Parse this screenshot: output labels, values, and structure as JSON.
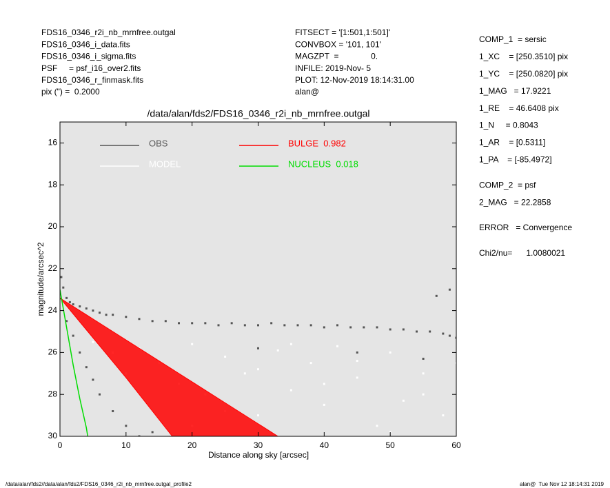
{
  "header": {
    "files": [
      "FDS16_0346_r2i_nb_mrnfree.outgal",
      "FDS16_0346_i_data.fits",
      "FDS16_0346_i_sigma.fits",
      "PSF     = psf_i16_over2.fits",
      "FDS16_0346_r_finmask.fits",
      "pix (\") =  0.2000"
    ],
    "settings": [
      "FITSECT = '[1:501,1:501]'",
      "CONVBOX = '101, 101'",
      "MAGZPT  =              0.",
      "INFILE: 2019-Nov- 5",
      "PLOT: 12-Nov-2019 18:14:31.00",
      "alan@"
    ]
  },
  "parameters": [
    [
      "COMP_1  = sersic",
      "1_XC    = [250.3510] pix",
      "1_YC    = [250.0820] pix",
      "1_MAG   = 17.9221",
      "1_RE    = 46.6408 pix",
      "1_N     = 0.8043",
      "1_AR    = [0.5311]",
      "1_PA    = [-85.4972]"
    ],
    [
      "COMP_2  = psf",
      "2_MAG   = 22.2858"
    ],
    [
      "ERROR   = Convergence"
    ],
    [
      "Chi2/nu=      1.0080021"
    ]
  ],
  "footer": {
    "left": "/data/alan/fds2//data/alan/fds2/FDS16_0346_r2i_nb_mrnfree.outgal_profile2",
    "right": "alan@  Tue Nov 12 18:14:31 2019"
  },
  "chart_data": {
    "type": "scatter",
    "title": "/data/alan/fds2/FDS16_0346_r2i_nb_mrnfree.outgal",
    "xlabel": "Distance along sky [arcsec]",
    "ylabel": "magnitude/arcsec^2",
    "xlim": [
      0,
      60
    ],
    "xticks": [
      0,
      10,
      20,
      30,
      40,
      50,
      60
    ],
    "ylim": [
      15,
      30
    ],
    "y_reversed": true,
    "yticks": [
      16,
      18,
      20,
      22,
      24,
      26,
      28,
      30
    ],
    "background": "#e5e5e5",
    "series": [
      {
        "name": "OBS",
        "type": "scatter",
        "color": "#555555",
        "x": [
          0.2,
          0.5,
          1,
          1.5,
          2,
          3,
          4,
          5,
          6,
          7,
          8,
          10,
          12,
          14,
          16,
          18,
          20,
          22,
          24,
          26,
          28,
          30,
          32,
          34,
          36,
          38,
          40,
          42,
          44,
          46,
          48,
          50,
          52,
          54,
          56,
          58,
          59,
          60,
          1,
          2,
          3,
          4,
          5,
          6,
          8,
          10,
          12,
          14,
          30,
          45,
          55,
          57,
          59
        ],
        "values": [
          22.4,
          22.9,
          23.4,
          23.6,
          23.7,
          23.8,
          23.9,
          24.0,
          24.1,
          24.2,
          24.2,
          24.3,
          24.4,
          24.5,
          24.5,
          24.6,
          24.6,
          24.6,
          24.7,
          24.6,
          24.7,
          24.7,
          24.6,
          24.7,
          24.7,
          24.7,
          24.8,
          24.7,
          24.8,
          24.8,
          24.8,
          24.9,
          24.9,
          25.0,
          25.0,
          25.1,
          25.2,
          25.3,
          24.5,
          25.2,
          26.0,
          26.7,
          27.3,
          28.0,
          28.8,
          29.5,
          30,
          29.8,
          25.8,
          26.0,
          26.3,
          23.3,
          23.0
        ]
      },
      {
        "name": "MODEL",
        "type": "scatter",
        "color": "#ffffff",
        "x": [
          5,
          8,
          10,
          12,
          15,
          18,
          20,
          22,
          25,
          28,
          30,
          33,
          35,
          38,
          40,
          42,
          45,
          48,
          50,
          52,
          55,
          58,
          60,
          20,
          30,
          40,
          50,
          55,
          25,
          35,
          45
        ],
        "values": [
          25.5,
          26,
          27,
          25.8,
          26.5,
          27.5,
          25.6,
          28,
          26.2,
          27,
          29,
          25.9,
          27.8,
          26.5,
          28.5,
          25.7,
          27.2,
          29.5,
          26,
          28.3,
          27,
          29,
          26.5,
          29.5,
          26.8,
          27.5,
          29.8,
          28,
          28.8,
          25.6,
          26.4
        ]
      },
      {
        "name": "BULGE  0.982",
        "type": "band",
        "color": "#ff0000",
        "x": [
          0,
          5,
          10,
          15,
          17,
          20,
          25,
          30,
          33
        ],
        "values": [
          23.4,
          24.4,
          25.4,
          26.4,
          26.8,
          27.4,
          28.4,
          29.4,
          30
        ],
        "values_inner": [
          23.4,
          25.3,
          27.2,
          29.2,
          30,
          30,
          30,
          30,
          30
        ]
      },
      {
        "name": "NUCLEUS  0.018",
        "type": "line",
        "color": "#00dd00",
        "x": [
          0,
          0.5,
          1,
          1.5,
          2,
          2.5,
          3,
          3.5,
          4,
          4.2
        ],
        "values": [
          23.0,
          23.9,
          24.8,
          25.7,
          26.6,
          27.4,
          28.2,
          28.9,
          29.6,
          30
        ]
      }
    ]
  }
}
